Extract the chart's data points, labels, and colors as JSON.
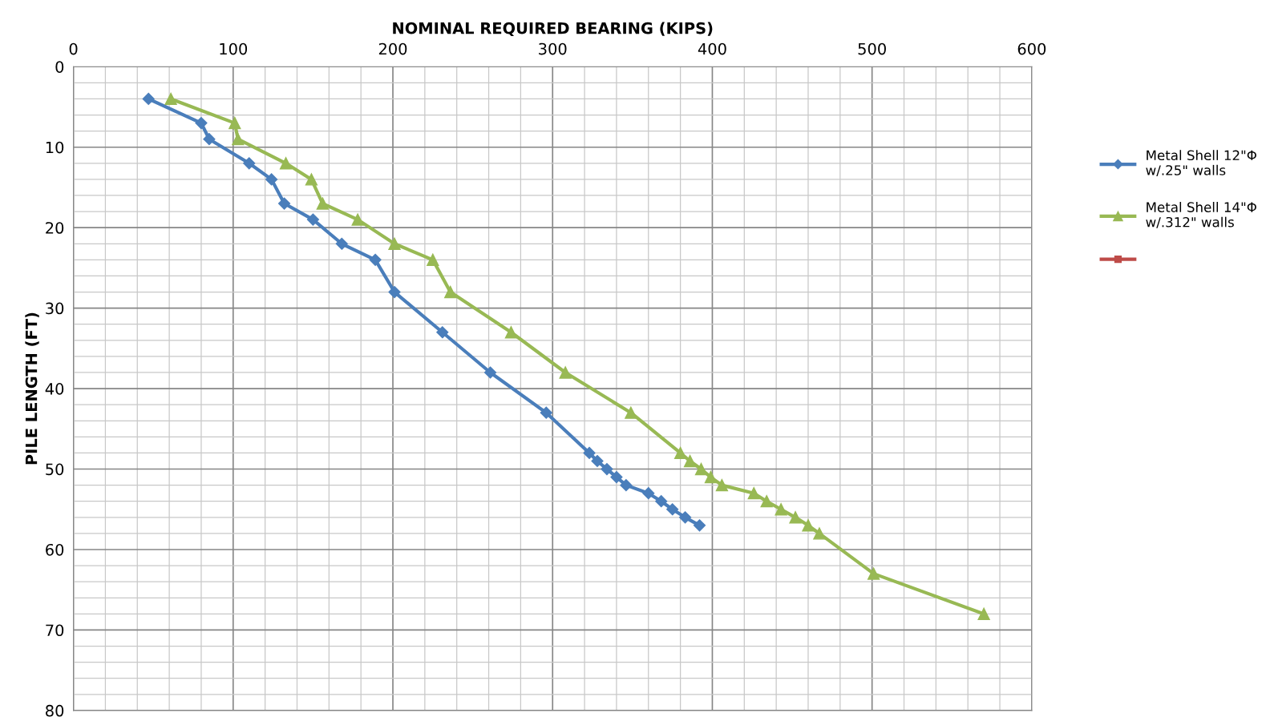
{
  "chart_data": {
    "type": "line",
    "xlabel": "NOMINAL REQUIRED BEARING (KIPS)",
    "ylabel": "PILE LENGTH (FT)",
    "xlim": [
      0,
      600
    ],
    "ylim": [
      80,
      0
    ],
    "xticks": [
      0,
      {
        "value": 20,
        "label": null
      },
      {
        "value": 40,
        "label": null
      },
      {
        "value": 60,
        "label": null
      },
      {
        "value": 80,
        "label": null
      },
      100,
      {
        "value": 120,
        "label": null
      },
      {
        "value": 140,
        "label": null
      },
      {
        "value": 160,
        "label": null
      },
      {
        "value": 180,
        "label": null
      },
      200,
      {
        "value": 220,
        "label": null
      },
      {
        "value": 240,
        "label": null
      },
      {
        "value": 260,
        "label": null
      },
      {
        "value": 280,
        "label": null
      },
      300,
      {
        "value": 320,
        "label": null
      },
      {
        "value": 340,
        "label": null
      },
      {
        "value": 360,
        "label": null
      },
      {
        "value": 380,
        "label": null
      },
      400,
      {
        "value": 420,
        "label": null
      },
      {
        "value": 440,
        "label": null
      },
      {
        "value": 460,
        "label": null
      },
      {
        "value": 480,
        "label": null
      },
      500,
      {
        "value": 520,
        "label": null
      },
      {
        "value": 540,
        "label": null
      },
      {
        "value": 560,
        "label": null
      },
      {
        "value": 580,
        "label": null
      },
      600
    ],
    "yticks": [
      0,
      {
        "value": 2,
        "label": null
      },
      {
        "value": 4,
        "label": null
      },
      {
        "value": 6,
        "label": null
      },
      {
        "value": 8,
        "label": null
      },
      10,
      {
        "value": 12,
        "label": null
      },
      {
        "value": 14,
        "label": null
      },
      {
        "value": 16,
        "label": null
      },
      {
        "value": 18,
        "label": null
      },
      20,
      {
        "value": 22,
        "label": null
      },
      {
        "value": 24,
        "label": null
      },
      {
        "value": 26,
        "label": null
      },
      {
        "value": 28,
        "label": null
      },
      30,
      {
        "value": 32,
        "label": null
      },
      {
        "value": 34,
        "label": null
      },
      {
        "value": 36,
        "label": null
      },
      {
        "value": 38,
        "label": null
      },
      40,
      {
        "value": 42,
        "label": null
      },
      {
        "value": 44,
        "label": null
      },
      {
        "value": 46,
        "label": null
      },
      {
        "value": 48,
        "label": null
      },
      50,
      {
        "value": 52,
        "label": null
      },
      {
        "value": 54,
        "label": null
      },
      {
        "value": 56,
        "label": null
      },
      {
        "value": 58,
        "label": null
      },
      60,
      {
        "value": 62,
        "label": null
      },
      {
        "value": 64,
        "label": null
      },
      {
        "value": 66,
        "label": null
      },
      {
        "value": 68,
        "label": null
      },
      70,
      {
        "value": 72,
        "label": null
      },
      {
        "value": 74,
        "label": null
      },
      {
        "value": 76,
        "label": null
      },
      {
        "value": 78,
        "label": null
      },
      80
    ],
    "grid": true,
    "legend": "right",
    "line_style": "solid",
    "series": [
      {
        "name": "Metal Shell 12\"Φ w/.25\" walls",
        "color": "#4a7ebb",
        "marker": "diamond",
        "x": [
          47,
          80,
          85,
          110,
          124,
          132,
          150,
          168,
          189,
          201,
          231,
          261,
          296,
          323,
          328,
          334,
          340,
          346,
          360,
          368,
          375,
          383,
          392
        ],
        "values": [
          4,
          7,
          9,
          12,
          14,
          17,
          19,
          22,
          24,
          28,
          33,
          38,
          43,
          48,
          49,
          50,
          51,
          52,
          53,
          54,
          55,
          56,
          57
        ]
      },
      {
        "name": "Metal Shell 14\"Φ w/.312\" walls",
        "color": "#98b954",
        "marker": "triangle",
        "x": [
          61,
          101,
          103,
          133,
          149,
          156,
          178,
          201,
          225,
          236,
          274,
          308,
          349,
          380,
          386,
          393,
          399,
          406,
          426,
          434,
          443,
          452,
          460,
          467,
          501,
          570
        ],
        "values": [
          4,
          7,
          9,
          12,
          14,
          17,
          19,
          22,
          24,
          28,
          33,
          38,
          43,
          48,
          49,
          50,
          51,
          52,
          53,
          54,
          55,
          56,
          57,
          58,
          63,
          68
        ]
      },
      {
        "color": "#be4b48",
        "marker": "square"
      }
    ]
  }
}
